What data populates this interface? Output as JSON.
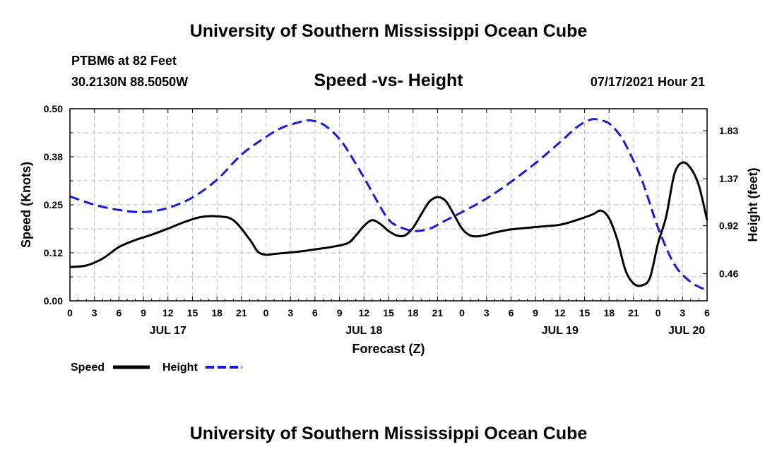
{
  "header": {
    "title": "University of Southern Mississippi Ocean Cube",
    "station": "PTBM6 at 82 Feet",
    "coordinates": "30.2130N  88.5050W",
    "chart_title": "Speed -vs- Height",
    "run_time": "07/17/2021 Hour 21"
  },
  "footer": {
    "title": "University of Southern Mississippi Ocean Cube"
  },
  "colors": {
    "speed": "#000000",
    "height": "#1a1ad6",
    "grid": "#bbbbbb"
  },
  "chart_data": {
    "type": "line",
    "title": "Speed -vs- Height",
    "xlabel": "Forecast (Z)",
    "ylabel": "Speed (Knots)",
    "y2label": "Height (feet)",
    "xlim": [
      0,
      78
    ],
    "ylim": [
      0,
      0.5
    ],
    "y2lim": [
      0.2,
      2.04
    ],
    "x_tick_values": [
      0,
      3,
      6,
      9,
      12,
      15,
      18,
      21,
      24,
      27,
      30,
      33,
      36,
      39,
      42,
      45,
      48,
      51,
      54,
      57,
      60,
      63,
      66,
      69,
      72,
      75,
      78
    ],
    "x_tick_labels": [
      "0",
      "3",
      "6",
      "9",
      "12",
      "15",
      "18",
      "21",
      "0",
      "3",
      "6",
      "9",
      "12",
      "15",
      "18",
      "21",
      "0",
      "3",
      "6",
      "9",
      "12",
      "15",
      "18",
      "21",
      "0",
      "3",
      "6"
    ],
    "date_labels": [
      {
        "hour": 12,
        "label": "JUL 17"
      },
      {
        "hour": 36,
        "label": "JUL 18"
      },
      {
        "hour": 60,
        "label": "JUL 19"
      },
      {
        "hour": 75.5,
        "label": "JUL 20"
      }
    ],
    "y_ticks": [
      0,
      0.125,
      0.25,
      0.375,
      0.5
    ],
    "y_tick_labels": [
      "0.00",
      "0.12",
      "0.25",
      "0.38",
      "0.50"
    ],
    "y2_ticks": [
      0.46,
      0.92,
      1.37,
      1.83
    ],
    "y2_tick_labels": [
      "0.46",
      "0.92",
      "1.37",
      "1.83"
    ],
    "grid": true,
    "series": [
      {
        "name": "Speed",
        "axis": "left",
        "style": "solid",
        "x": [
          0,
          2,
          4,
          6,
          8,
          10,
          12,
          14,
          16,
          18,
          20,
          22,
          23,
          24,
          25,
          26,
          28,
          30,
          32,
          34,
          35,
          36,
          37,
          38,
          39,
          40,
          41,
          42,
          43,
          44,
          45,
          46,
          47,
          48,
          49,
          50,
          51,
          52,
          53,
          54,
          56,
          58,
          60,
          62,
          64,
          65,
          66,
          67,
          68,
          69,
          70,
          71,
          72,
          73,
          74,
          75,
          76,
          77,
          78
        ],
        "y": [
          0.088,
          0.092,
          0.11,
          0.14,
          0.158,
          0.172,
          0.188,
          0.205,
          0.218,
          0.22,
          0.21,
          0.16,
          0.128,
          0.12,
          0.122,
          0.124,
          0.128,
          0.134,
          0.14,
          0.15,
          0.17,
          0.195,
          0.21,
          0.2,
          0.182,
          0.17,
          0.17,
          0.19,
          0.225,
          0.258,
          0.27,
          0.26,
          0.225,
          0.188,
          0.17,
          0.168,
          0.172,
          0.178,
          0.182,
          0.186,
          0.19,
          0.194,
          0.198,
          0.21,
          0.225,
          0.235,
          0.215,
          0.16,
          0.08,
          0.045,
          0.04,
          0.06,
          0.15,
          0.22,
          0.33,
          0.36,
          0.345,
          0.3,
          0.21
        ]
      },
      {
        "name": "Height",
        "axis": "right",
        "style": "dashed",
        "x": [
          0,
          3,
          6,
          9,
          12,
          15,
          18,
          21,
          24,
          26,
          28,
          29,
          30,
          31,
          32,
          33,
          34,
          36,
          38,
          39,
          40,
          42,
          44,
          46,
          48,
          51,
          54,
          57,
          60,
          62,
          63,
          64,
          65,
          66,
          67,
          68,
          70,
          72,
          74,
          76,
          78
        ],
        "y": [
          1.2,
          1.12,
          1.07,
          1.05,
          1.09,
          1.19,
          1.36,
          1.6,
          1.77,
          1.86,
          1.91,
          1.93,
          1.92,
          1.89,
          1.83,
          1.75,
          1.64,
          1.38,
          1.1,
          0.98,
          0.92,
          0.87,
          0.89,
          0.97,
          1.05,
          1.18,
          1.34,
          1.52,
          1.72,
          1.86,
          1.91,
          1.94,
          1.93,
          1.9,
          1.82,
          1.7,
          1.36,
          0.9,
          0.55,
          0.38,
          0.3
        ]
      }
    ],
    "legend": {
      "position": "bottom-left",
      "entries": [
        "Speed",
        "Height"
      ]
    }
  }
}
